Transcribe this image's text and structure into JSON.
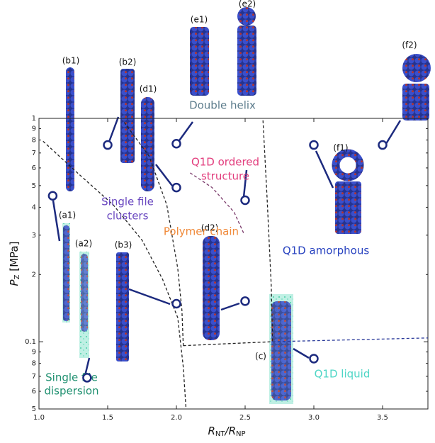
{
  "chart_data": {
    "type": "scatter",
    "xlabel_parts": [
      "R",
      "NT",
      "/R",
      "NP"
    ],
    "ylabel_parts": [
      "P",
      "Z",
      " [MPa]"
    ],
    "log_y": true,
    "xlim": [
      1.0,
      3.83
    ],
    "ylim": [
      0.05,
      1
    ],
    "xticks": [
      {
        "value": 1,
        "label": "1.0"
      },
      1.5,
      {
        "value": 2,
        "label": "2.0"
      },
      2.5,
      {
        "value": 3,
        "label": "3.0"
      },
      3.5
    ],
    "yticks": [
      1,
      {
        "value": 0.9,
        "label": "9"
      },
      {
        "value": 0.8,
        "label": "8"
      },
      {
        "value": 0.7,
        "label": "7"
      },
      {
        "value": 0.6,
        "label": "6"
      },
      {
        "value": 0.5,
        "label": "5"
      },
      {
        "value": 0.4,
        "label": "4"
      },
      {
        "value": 0.3,
        "label": "3"
      },
      {
        "value": 0.2,
        "label": "2"
      },
      0.1,
      {
        "value": 0.09,
        "label": "9"
      },
      {
        "value": 0.08,
        "label": "8"
      },
      {
        "value": 0.07,
        "label": "7"
      },
      {
        "value": 0.06,
        "label": "6"
      },
      {
        "value": 0.05,
        "label": "5"
      }
    ],
    "points": {
      "color": "#1c2a7e",
      "x": [
        1.1,
        1.5,
        2.0,
        2.0,
        2.5,
        3.0,
        3.5,
        2.0,
        2.5,
        1.35,
        3.0
      ],
      "y": [
        0.45,
        0.76,
        0.77,
        0.49,
        0.43,
        0.76,
        0.76,
        0.148,
        0.152,
        0.069,
        0.084
      ]
    },
    "boundaries": [
      {
        "color": "#222222",
        "x": [
          1.03,
          1.28,
          1.54,
          1.75,
          1.9,
          2.01,
          2.05,
          2.07
        ],
        "y": [
          0.79,
          0.57,
          0.41,
          0.285,
          0.19,
          0.128,
          0.077,
          0.05
        ]
      },
      {
        "color": "#222222",
        "x": [
          1.62,
          1.8,
          1.93,
          2.01,
          2.04,
          2.05
        ],
        "y": [
          0.96,
          0.68,
          0.41,
          0.213,
          0.138,
          0.096
        ]
      },
      {
        "color": "#222222",
        "x": [
          2.05,
          2.37,
          2.7
        ],
        "y": [
          0.096,
          0.098,
          0.1
        ]
      },
      {
        "color": "#7a3a6a",
        "x": [
          2.1,
          2.26,
          2.42,
          2.49
        ],
        "y": [
          0.57,
          0.49,
          0.38,
          0.306
        ]
      },
      {
        "color": "#222222",
        "x": [
          2.63,
          2.66,
          2.69,
          2.7
        ],
        "y": [
          0.98,
          0.44,
          0.18,
          0.1
        ]
      },
      {
        "color": "#2a3a9a",
        "x": [
          2.7,
          3.83
        ],
        "y": [
          0.1,
          0.104
        ]
      }
    ],
    "region_labels": [
      {
        "lines": [
          "Double helix"
        ],
        "color": "#5b7b8b"
      },
      {
        "lines": [
          "Q1D ordered",
          "structure"
        ],
        "color": "#e23c7c"
      },
      {
        "lines": [
          "Single file",
          "clusters"
        ],
        "color": "#6a48c0"
      },
      {
        "lines": [
          "Polymer chain"
        ],
        "color": "#f08a3a"
      },
      {
        "lines": [
          "Q1D amorphous"
        ],
        "color": "#2a44c0"
      },
      {
        "lines": [
          "Q1D liquid"
        ],
        "color": "#4fd6c6"
      },
      {
        "lines": [
          "Single file",
          "dispersion"
        ],
        "color": "#1f9070"
      }
    ],
    "panel_labels": [
      "(a1)",
      "(a2)",
      "(b1)",
      "(b2)",
      "(b3)",
      "(c)",
      "(d1)",
      "(d2)",
      "(e1)",
      "(e2)",
      "(f1)",
      "(f2)"
    ]
  }
}
